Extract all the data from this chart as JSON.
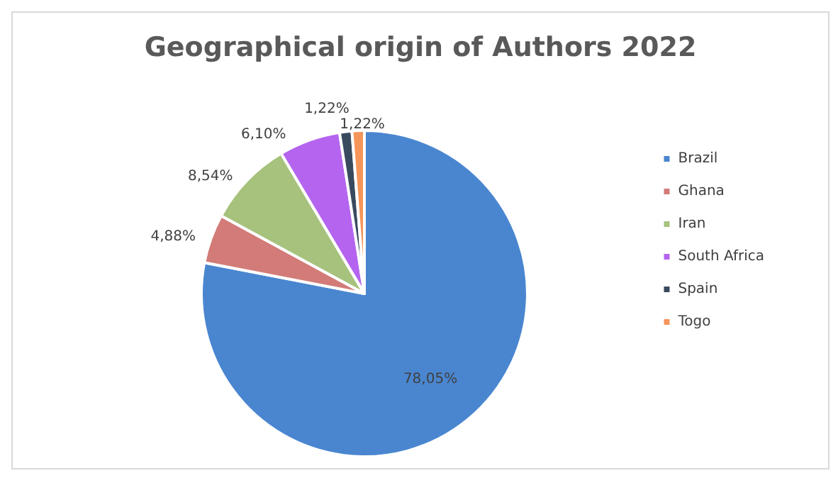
{
  "chart_data": {
    "type": "pie",
    "title": "Geographical origin of Authors 2022",
    "categories": [
      "Brazil",
      "Ghana",
      "Iran",
      "South Africa",
      "Spain",
      "Togo"
    ],
    "values": [
      78.05,
      4.88,
      8.54,
      6.1,
      1.22,
      1.22
    ],
    "colors": [
      "#4a86d0",
      "#d27b78",
      "#a6c27c",
      "#b464ee",
      "#3a4a5e",
      "#f5955a"
    ],
    "value_labels": [
      "78,05%",
      "4,88%",
      "8,54%",
      "6,10%",
      "1,22%",
      "1,22%"
    ],
    "legend": "right"
  }
}
